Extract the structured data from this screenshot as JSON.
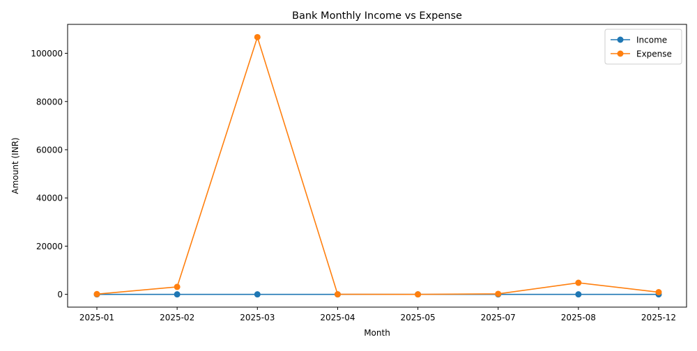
{
  "chart_data": {
    "type": "line",
    "title": "Bank Monthly Income vs Expense",
    "xlabel": "Month",
    "ylabel": "Amount (INR)",
    "categories": [
      "2025-01",
      "2025-02",
      "2025-03",
      "2025-04",
      "2025-05",
      "2025-07",
      "2025-08",
      "2025-12"
    ],
    "series": [
      {
        "name": "Income",
        "color": "#1f77b4",
        "values": [
          0,
          0,
          0,
          0,
          0,
          0,
          0,
          0
        ]
      },
      {
        "name": "Expense",
        "color": "#ff7f0e",
        "values": [
          100,
          3100,
          106700,
          20,
          0,
          200,
          4800,
          900
        ]
      }
    ],
    "ylim": [
      -5300,
      112000
    ],
    "yticks": [
      0,
      20000,
      40000,
      60000,
      80000,
      100000
    ],
    "ytick_labels": [
      "0",
      "20000",
      "40000",
      "60000",
      "80000",
      "100000"
    ],
    "legend_position": "top-right",
    "grid": false,
    "markers": "circle"
  }
}
